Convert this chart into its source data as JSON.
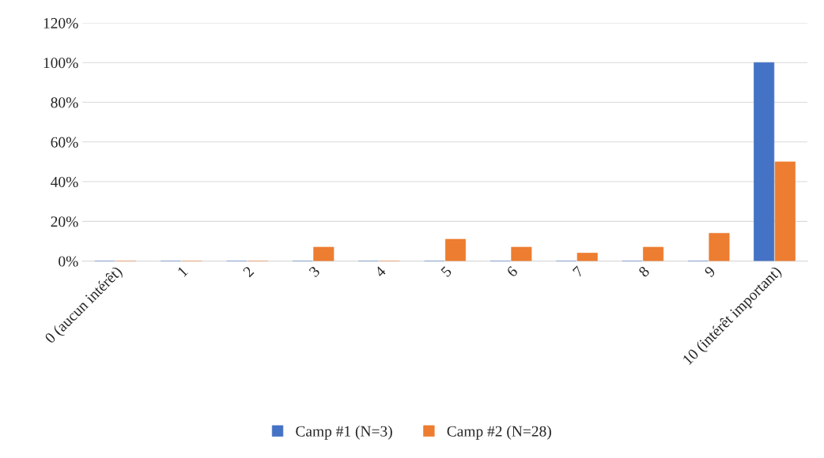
{
  "chart_data": {
    "type": "bar",
    "categories": [
      "0 (aucun intérêt)",
      "1",
      "2",
      "3",
      "4",
      "5",
      "6",
      "7",
      "8",
      "9",
      "10 (intérêt important)"
    ],
    "series": [
      {
        "name": "Camp #1 (N=3)",
        "color": "#4472c4",
        "values": [
          0,
          0,
          0,
          0,
          0,
          0,
          0,
          0,
          0,
          0,
          100
        ]
      },
      {
        "name": "Camp #2 (N=28)",
        "color": "#ed7d31",
        "values": [
          0,
          0,
          0,
          7,
          0,
          11,
          7,
          4,
          7,
          14,
          50
        ]
      }
    ],
    "ylim": [
      0,
      120
    ],
    "yticks": [
      {
        "value": 0,
        "label": "0%"
      },
      {
        "value": 20,
        "label": "20%"
      },
      {
        "value": 40,
        "label": "40%"
      },
      {
        "value": 60,
        "label": "60%"
      },
      {
        "value": 80,
        "label": "80%"
      },
      {
        "value": 100,
        "label": "100%"
      },
      {
        "value": 120,
        "label": "120%"
      }
    ],
    "grid": "y",
    "legend": "bottom"
  }
}
